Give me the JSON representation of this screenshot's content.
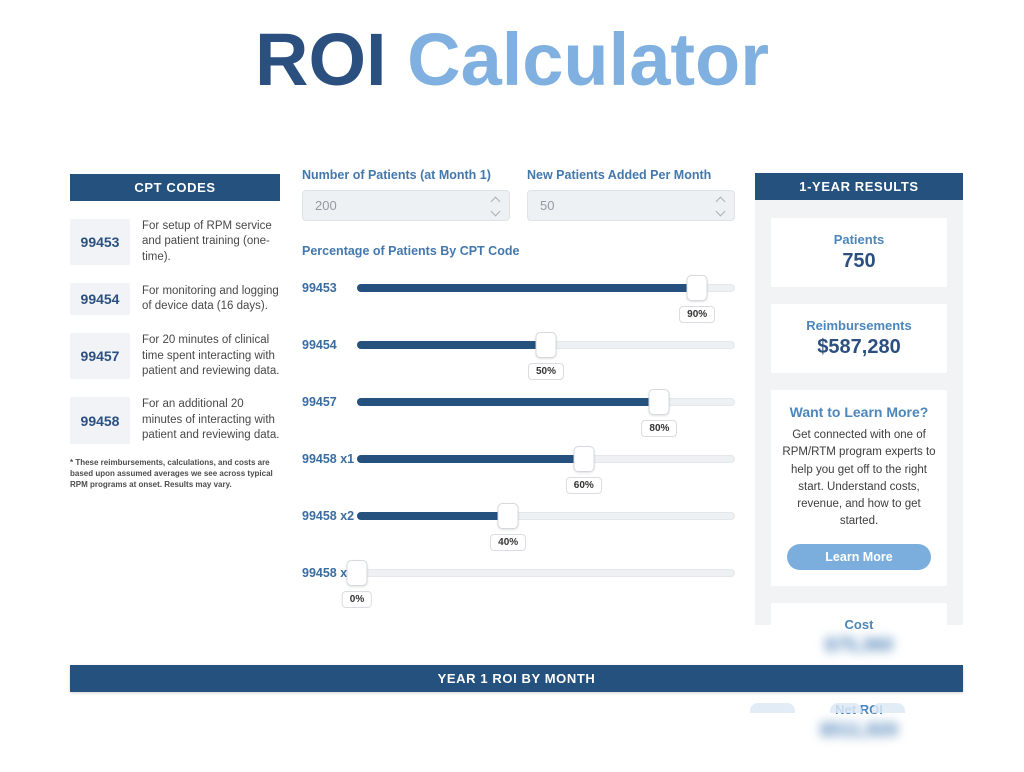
{
  "title": {
    "dark": "ROI",
    "light": "Calculator"
  },
  "colors": {
    "navy": "#24517e",
    "title_dark": "#2b5080",
    "title_light": "#7fb0e0",
    "label_blue": "#4478ac",
    "button_blue": "#7caedd",
    "panel_gray": "#f2f3f5",
    "track_gray": "#eef1f4"
  },
  "cpt_panel": {
    "header": "CPT CODES",
    "items": [
      {
        "code": "99453",
        "description": "For setup of RPM service and patient training (one-time)."
      },
      {
        "code": "99454",
        "description": "For monitoring and logging of device data (16 days)."
      },
      {
        "code": "99457",
        "description": "For 20 minutes of clinical time spent interacting with patient and reviewing data."
      },
      {
        "code": "99458",
        "description": "For an additional 20 minutes of interacting with patient and reviewing data."
      }
    ],
    "footnote": "* These reimbursements, calculations, and costs are based upon assumed averages we see across typical RPM programs at onset. Results may vary."
  },
  "inputs": {
    "patients_label": "Number of Patients (at Month 1)",
    "patients_value": "200",
    "new_patients_label": "New Patients Added Per Month",
    "new_patients_value": "50"
  },
  "sliders": {
    "heading": "Percentage of Patients By CPT Code",
    "items": [
      {
        "label": "99453",
        "value": 90,
        "display": "90%"
      },
      {
        "label": "99454",
        "value": 50,
        "display": "50%"
      },
      {
        "label": "99457",
        "value": 80,
        "display": "80%"
      },
      {
        "label": "99458 x1",
        "value": 60,
        "display": "60%"
      },
      {
        "label": "99458 x2",
        "value": 40,
        "display": "40%"
      },
      {
        "label": "99458 x3",
        "value": 0,
        "display": "0%"
      }
    ]
  },
  "results_panel": {
    "header": "1-YEAR RESULTS",
    "patients_label": "Patients",
    "patients_value": "750",
    "reimbursements_label": "Reimbursements",
    "reimbursements_value": "$587,280",
    "learn_more": {
      "title": "Want to Learn More?",
      "body": "Get connected with one of RPM/RTM program experts to help you get off to the right start. Understand costs, revenue, and how to get started.",
      "button": "Learn More"
    },
    "cost_label": "Cost",
    "cost_value_blurred": "$75,360",
    "net_roi_label": "Net ROI",
    "net_roi_value_blurred": "$511,920"
  },
  "bottom_bar": {
    "title": "YEAR 1 ROI BY MONTH"
  }
}
